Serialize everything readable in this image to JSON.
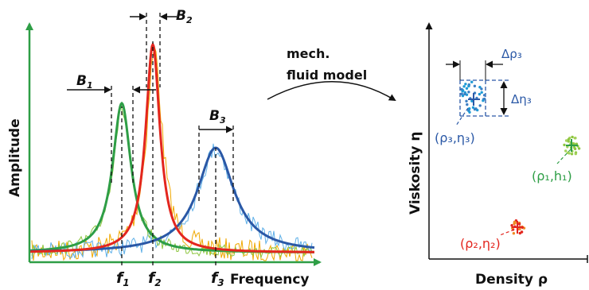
{
  "left_plot": {
    "y_axis_label": "Amplitude",
    "x_axis_label": "Frequency",
    "bandwidth_labels": {
      "b1": "B",
      "b1_sub": "1",
      "b2": "B",
      "b2_sub": "2",
      "b3": "B",
      "b3_sub": "3"
    },
    "frequency_labels": {
      "f1": "f",
      "f1_sub": "1",
      "f2": "f",
      "f2_sub": "2",
      "f3": "f",
      "f3_sub": "3"
    },
    "colors": {
      "green": "#2e9e46",
      "red": "#e3261e",
      "blue": "#2a58a6",
      "yellow": "#f0a800",
      "lightblue": "#5fb0e8",
      "axis": "#2e9e46"
    }
  },
  "model": {
    "line1": "mech.",
    "line2": "fluid model"
  },
  "right_plot": {
    "y_axis_label": "Viskosity η",
    "x_axis_label": "Density ρ",
    "delta_rho": "Δρ₃",
    "delta_eta": "Δη₃",
    "cluster_blue_label": "(ρ₃,η₃)",
    "cluster_green_label": "(ρ₁,h₁)",
    "cluster_red_label": "(ρ₂,η₂)",
    "colors": {
      "blue": "#3b7fc4",
      "green": "#8dc63f",
      "red": "#e3261e",
      "orange": "#f08a24",
      "label_blue": "#2a58a6",
      "label_green": "#2e9e46",
      "label_red": "#e3261e"
    }
  }
}
